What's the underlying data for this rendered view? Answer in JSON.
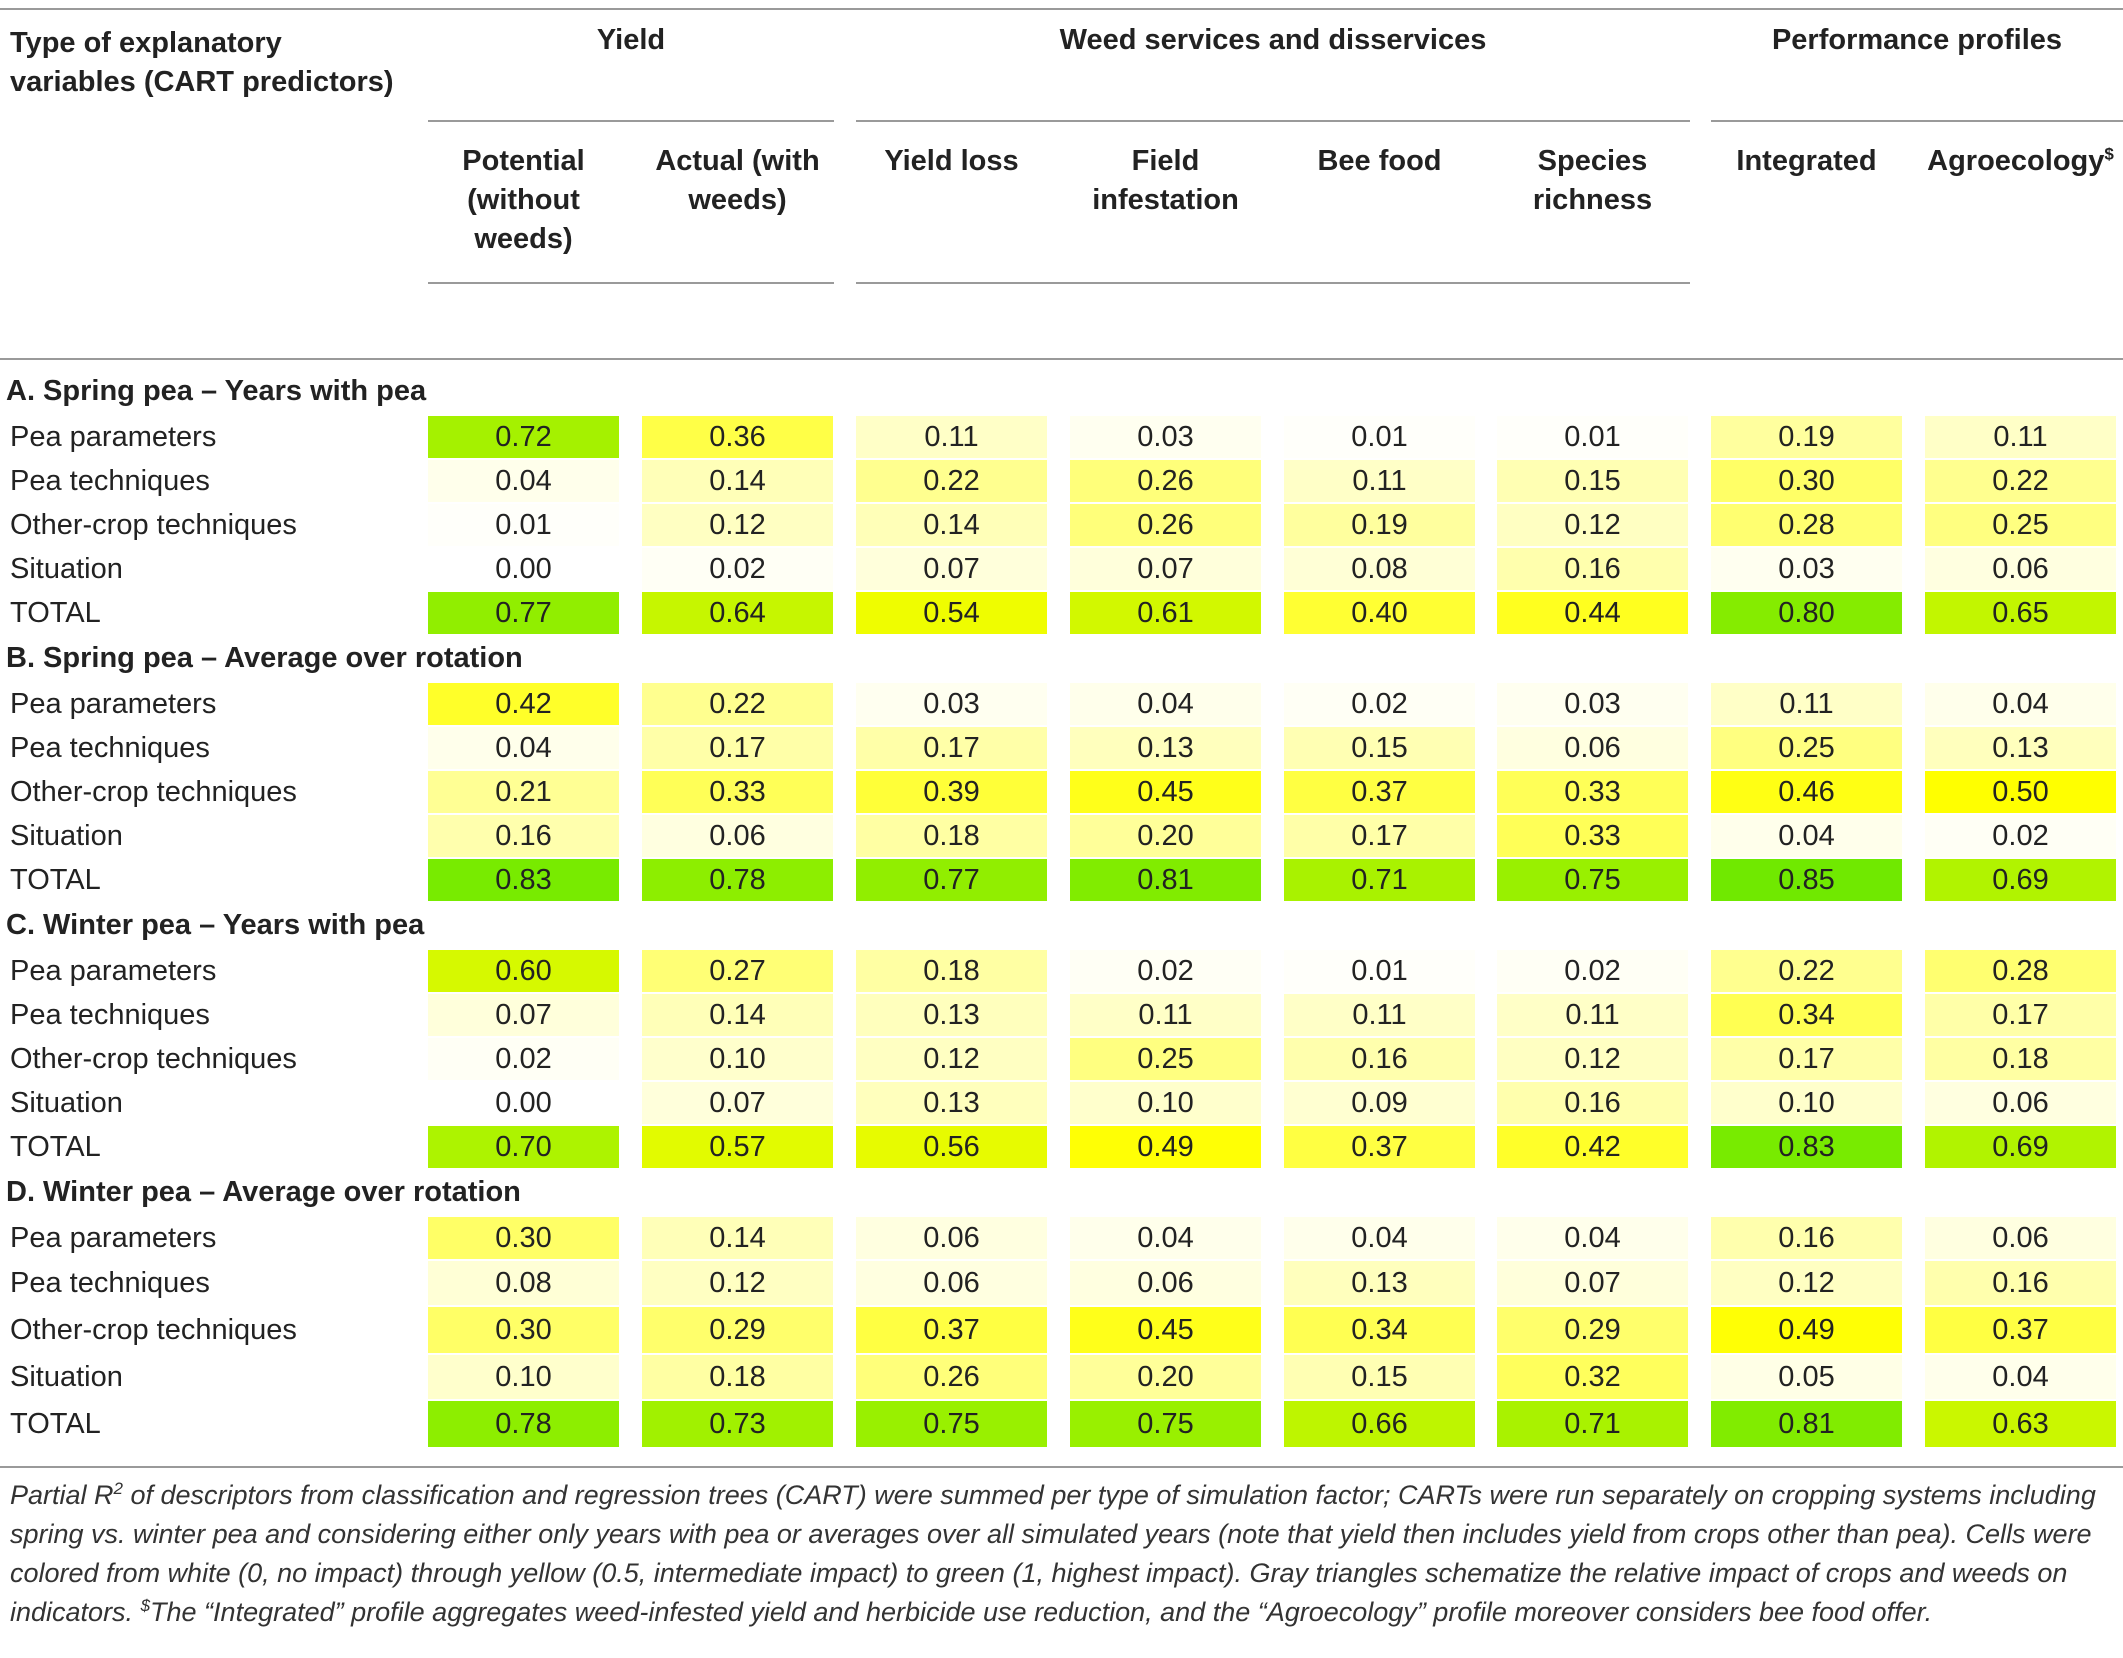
{
  "table": {
    "type_header": [
      "Type of explanatory",
      "variables (CART predictors)"
    ],
    "groups": [
      {
        "id": "yield",
        "label": "Yield"
      },
      {
        "id": "weed",
        "label": "Weed services and disservices"
      },
      {
        "id": "perf",
        "label": "Performance profiles"
      }
    ],
    "columns": [
      {
        "lines": [
          "Potential",
          "(without",
          "weeds)"
        ]
      },
      {
        "lines": [
          "Actual (with",
          "weeds)"
        ]
      },
      {
        "lines": [
          "Yield loss"
        ]
      },
      {
        "lines": [
          "Field",
          "infestation"
        ]
      },
      {
        "lines": [
          "Bee food"
        ]
      },
      {
        "lines": [
          "Species",
          "richness"
        ]
      },
      {
        "lines": [
          "Integrated"
        ]
      },
      {
        "lines": [
          "Agroecology"
        ],
        "superscript": "$"
      }
    ],
    "sections": [
      {
        "title": "A. Spring pea – Years with pea",
        "rows": [
          {
            "label": "Pea parameters",
            "values": [
              "0.72",
              "0.36",
              "0.11",
              "0.03",
              "0.01",
              "0.01",
              "0.19",
              "0.11"
            ]
          },
          {
            "label": "Pea techniques",
            "values": [
              "0.04",
              "0.14",
              "0.22",
              "0.26",
              "0.11",
              "0.15",
              "0.30",
              "0.22"
            ]
          },
          {
            "label": "Other-crop techniques",
            "values": [
              "0.01",
              "0.12",
              "0.14",
              "0.26",
              "0.19",
              "0.12",
              "0.28",
              "0.25"
            ]
          },
          {
            "label": "Situation",
            "values": [
              "0.00",
              "0.02",
              "0.07",
              "0.07",
              "0.08",
              "0.16",
              "0.03",
              "0.06"
            ]
          },
          {
            "label": "TOTAL",
            "values": [
              "0.77",
              "0.64",
              "0.54",
              "0.61",
              "0.40",
              "0.44",
              "0.80",
              "0.65"
            ]
          }
        ]
      },
      {
        "title": "B. Spring pea – Average over rotation",
        "rows": [
          {
            "label": "Pea parameters",
            "values": [
              "0.42",
              "0.22",
              "0.03",
              "0.04",
              "0.02",
              "0.03",
              "0.11",
              "0.04"
            ]
          },
          {
            "label": "Pea techniques",
            "values": [
              "0.04",
              "0.17",
              "0.17",
              "0.13",
              "0.15",
              "0.06",
              "0.25",
              "0.13"
            ]
          },
          {
            "label": "Other-crop techniques",
            "values": [
              "0.21",
              "0.33",
              "0.39",
              "0.45",
              "0.37",
              "0.33",
              "0.46",
              "0.50"
            ]
          },
          {
            "label": "Situation",
            "values": [
              "0.16",
              "0.06",
              "0.18",
              "0.20",
              "0.17",
              "0.33",
              "0.04",
              "0.02"
            ]
          },
          {
            "label": "TOTAL",
            "values": [
              "0.83",
              "0.78",
              "0.77",
              "0.81",
              "0.71",
              "0.75",
              "0.85",
              "0.69"
            ]
          }
        ]
      },
      {
        "title": "C. Winter pea – Years with pea",
        "rows": [
          {
            "label": "Pea parameters",
            "values": [
              "0.60",
              "0.27",
              "0.18",
              "0.02",
              "0.01",
              "0.02",
              "0.22",
              "0.28"
            ]
          },
          {
            "label": "Pea techniques",
            "values": [
              "0.07",
              "0.14",
              "0.13",
              "0.11",
              "0.11",
              "0.11",
              "0.34",
              "0.17"
            ]
          },
          {
            "label": "Other-crop techniques",
            "values": [
              "0.02",
              "0.10",
              "0.12",
              "0.25",
              "0.16",
              "0.12",
              "0.17",
              "0.18"
            ]
          },
          {
            "label": "Situation",
            "values": [
              "0.00",
              "0.07",
              "0.13",
              "0.10",
              "0.09",
              "0.16",
              "0.10",
              "0.06"
            ]
          },
          {
            "label": "TOTAL",
            "values": [
              "0.70",
              "0.57",
              "0.56",
              "0.49",
              "0.37",
              "0.42",
              "0.83",
              "0.69"
            ]
          }
        ]
      },
      {
        "title": "D. Winter pea – Average over rotation",
        "rows": [
          {
            "label": "Pea parameters",
            "values": [
              "0.30",
              "0.14",
              "0.06",
              "0.04",
              "0.04",
              "0.04",
              "0.16",
              "0.06"
            ]
          },
          {
            "label": "Pea techniques",
            "values": [
              "0.08",
              "0.12",
              "0.06",
              "0.06",
              "0.13",
              "0.07",
              "0.12",
              "0.16"
            ]
          },
          {
            "label": "Other-crop techniques",
            "values": [
              "0.30",
              "0.29",
              "0.37",
              "0.45",
              "0.34",
              "0.29",
              "0.49",
              "0.37"
            ]
          },
          {
            "label": "Situation",
            "values": [
              "0.10",
              "0.18",
              "0.26",
              "0.20",
              "0.15",
              "0.32",
              "0.05",
              "0.04"
            ]
          },
          {
            "label": "TOTAL",
            "values": [
              "0.78",
              "0.73",
              "0.75",
              "0.75",
              "0.66",
              "0.71",
              "0.81",
              "0.63"
            ]
          }
        ]
      }
    ]
  },
  "caption": {
    "part1": "Partial R",
    "sup1": "2",
    "part2": " of descriptors from classification and regression trees (CART) were summed per type of simulation factor; CARTs were run separately on cropping systems including spring vs. winter pea and considering either only years with pea or averages over all simulated years (note that yield then includes yield from crops other than pea). Cells were colored from white (0, no impact) through yellow (0.5, intermediate impact) to green (1, highest impact). Gray triangles schematize the relative impact of crops and weeds on indicators. ",
    "sup2": "$",
    "part3": "The “Integrated” profile aggregates weed-infested yield and herbicide use reduction, and the “Agroecology” profile moreover considers bee food offer."
  },
  "colors": {
    "white": "#ffffff",
    "yellow": "#ffff00",
    "green": "#33e000",
    "rule": "#9a9a9a"
  }
}
